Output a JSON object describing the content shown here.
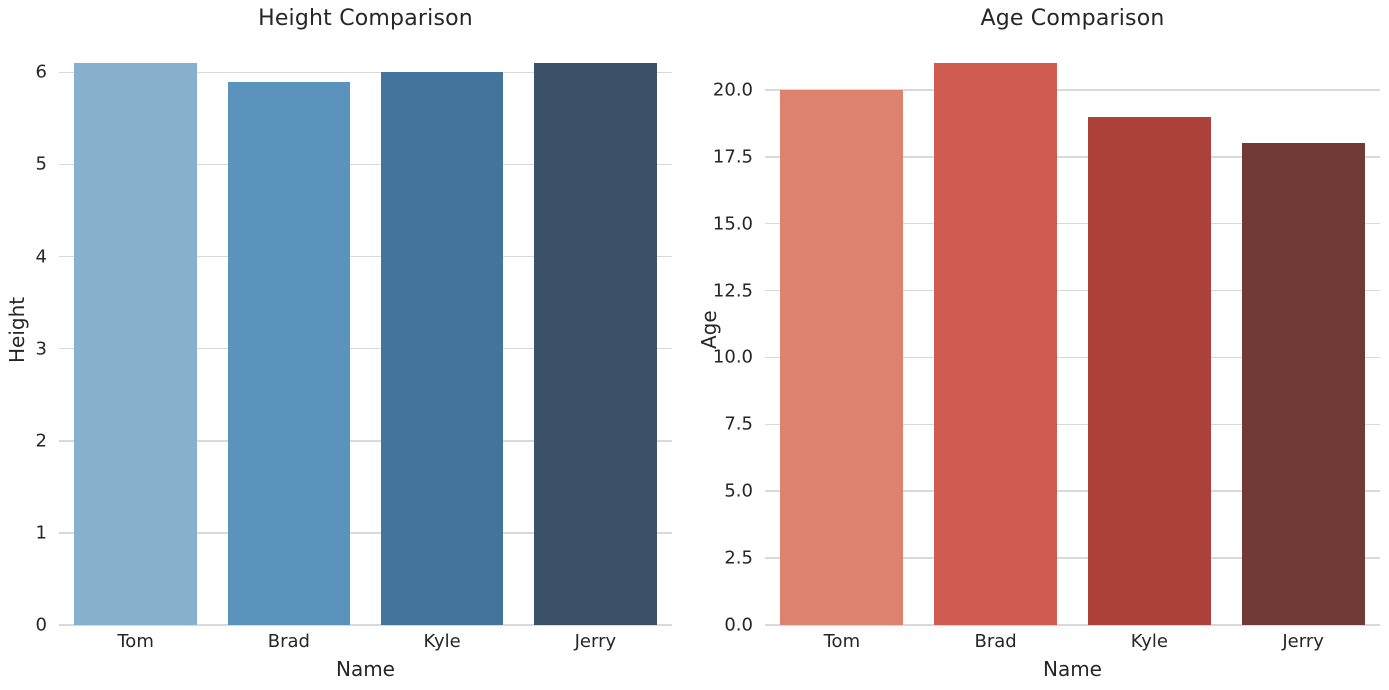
{
  "figure": {
    "background": "#ffffff",
    "text_color": "#262626",
    "grid_color": "#d9d9d9"
  },
  "chart_data": [
    {
      "type": "bar",
      "title": "Height Comparison",
      "xlabel": "Name",
      "ylabel": "Height",
      "categories": [
        "Tom",
        "Brad",
        "Kyle",
        "Jerry"
      ],
      "values": [
        6.1,
        5.9,
        6.0,
        6.1
      ],
      "bar_colors": [
        "#87b0cd",
        "#5c93bd",
        "#43759c",
        "#3a5167"
      ],
      "ylim": [
        0,
        6.405
      ],
      "yticks": [
        0,
        1,
        2,
        3,
        4,
        5,
        6
      ],
      "ytick_labels": [
        "0",
        "1",
        "2",
        "3",
        "4",
        "5",
        "6"
      ],
      "grid": true,
      "legend_position": "none",
      "bar_width_fraction": 0.8
    },
    {
      "type": "bar",
      "title": "Age Comparison",
      "xlabel": "Name",
      "ylabel": "Age",
      "categories": [
        "Tom",
        "Brad",
        "Kyle",
        "Jerry"
      ],
      "values": [
        20,
        21,
        19,
        18
      ],
      "bar_colors": [
        "#de8270",
        "#d05b51",
        "#ad423b",
        "#713a37"
      ],
      "ylim": [
        0,
        22.05
      ],
      "yticks": [
        0,
        2.5,
        5,
        7.5,
        10,
        12.5,
        15,
        17.5,
        20
      ],
      "ytick_labels": [
        "0.0",
        "2.5",
        "5.0",
        "7.5",
        "10.0",
        "12.5",
        "15.0",
        "17.5",
        "20.0"
      ],
      "grid": true,
      "legend_position": "none",
      "bar_width_fraction": 0.8
    }
  ]
}
